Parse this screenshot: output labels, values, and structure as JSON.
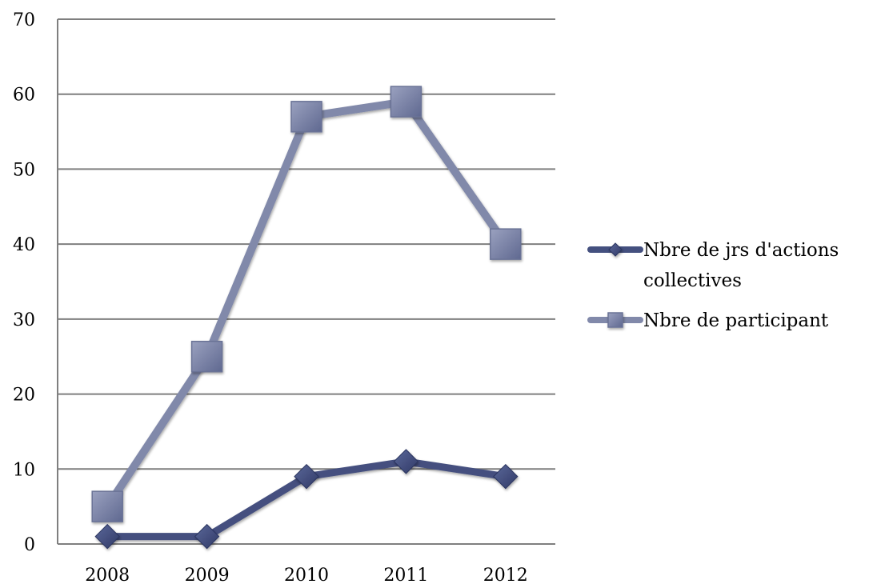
{
  "chart_data": {
    "type": "line",
    "title": "",
    "xlabel": "",
    "ylabel": "",
    "categories": [
      "2008",
      "2009",
      "2010",
      "2011",
      "2012"
    ],
    "ylim": [
      0,
      70
    ],
    "yticks": [
      0,
      10,
      20,
      30,
      40,
      50,
      60,
      70
    ],
    "grid": true,
    "legend_position": "right",
    "series": [
      {
        "name_lines": [
          "Nbre de jrs d'actions",
          "collectives"
        ],
        "marker": "diamond",
        "color": "#44507f",
        "values": [
          1,
          1,
          9,
          11,
          9
        ]
      },
      {
        "name_lines": [
          "Nbre de participant"
        ],
        "marker": "square",
        "color": "#8189aa",
        "values": [
          5,
          25,
          57,
          59,
          40
        ]
      }
    ]
  }
}
